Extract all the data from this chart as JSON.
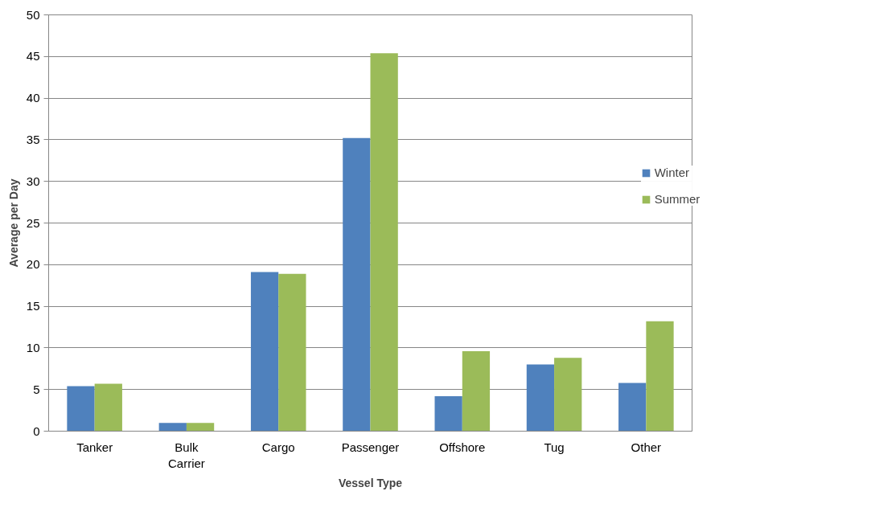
{
  "chart_data": {
    "type": "bar",
    "xlabel": "Vessel Type",
    "ylabel": "Average per Day",
    "categories": [
      "Tanker",
      "Bulk Carrier",
      "Cargo",
      "Passenger",
      "Offshore",
      "Tug",
      "Other"
    ],
    "series": [
      {
        "name": "Winter",
        "color": "#4f81bd",
        "values": [
          5.4,
          1.0,
          19.1,
          35.2,
          4.2,
          8.0,
          5.8
        ]
      },
      {
        "name": "Summer",
        "color": "#9bbb59",
        "values": [
          5.7,
          1.0,
          18.9,
          45.4,
          9.6,
          8.8,
          13.2
        ]
      }
    ],
    "ylim": [
      0,
      50
    ],
    "yticks": [
      0,
      5,
      10,
      15,
      20,
      25,
      30,
      35,
      40,
      45,
      50
    ],
    "grid": "y",
    "legend": "right"
  }
}
